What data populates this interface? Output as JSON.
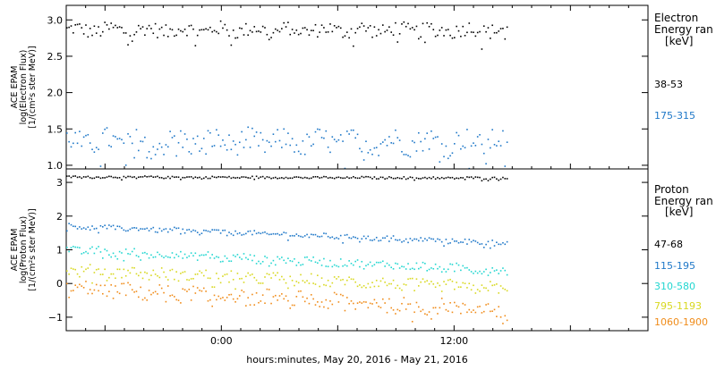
{
  "chart_data": [
    {
      "type": "scatter",
      "panel": "electron",
      "ylabel_lines": [
        "ACE EPAM",
        "log(Electron Flux)",
        "[1/(cm²s ster MeV)]"
      ],
      "ylim": [
        0.95,
        3.2
      ],
      "yticks": [
        1.0,
        1.5,
        2.0,
        2.5,
        3.0
      ],
      "ytick_labels": [
        "1.0",
        "1.5",
        "2.0",
        "2.5",
        "3.0"
      ],
      "legend_title": [
        "Electron",
        "Energy ran",
        "[keV]"
      ],
      "series": [
        {
          "name": "38-53",
          "color": "#000000",
          "center": 2.87,
          "spread": 0.1,
          "drift": 0.0
        },
        {
          "name": "175-315",
          "color": "#1f78c8",
          "center": 1.33,
          "spread": 0.16,
          "drift": 0.0
        }
      ]
    },
    {
      "type": "scatter",
      "panel": "proton",
      "ylabel_lines": [
        "ACE EPAM",
        "log(Proton Flux)",
        "[1/(cm²s ster MeV)]"
      ],
      "ylim": [
        -1.4,
        3.4
      ],
      "yticks": [
        -1,
        0,
        1,
        2,
        3
      ],
      "ytick_labels": [
        "−1",
        "0",
        "1",
        "2",
        "3"
      ],
      "legend_title": [
        "Proton",
        "Energy ran",
        "[keV]"
      ],
      "series": [
        {
          "name": "47-68",
          "color": "#000000",
          "center": 3.18,
          "spread": 0.03,
          "drift": -0.03
        },
        {
          "name": "115-195",
          "color": "#1f78c8",
          "center": 1.72,
          "spread": 0.07,
          "drift": -0.5
        },
        {
          "name": "310-580",
          "color": "#22d6d0",
          "center": 1.02,
          "spread": 0.12,
          "drift": -0.62
        },
        {
          "name": "795-1193",
          "color": "#d8d820",
          "center": 0.42,
          "spread": 0.16,
          "drift": -0.55
        },
        {
          "name": "1060-1900",
          "color": "#f08c1a",
          "center": -0.12,
          "spread": 0.22,
          "drift": -0.65
        }
      ]
    }
  ],
  "x_axis": {
    "ticks": [
      0,
      12
    ],
    "tick_labels": [
      "0:00",
      "12:00"
    ],
    "range_hours": [
      -8,
      22
    ],
    "data_range_hours": [
      -8,
      14.7
    ],
    "label": "hours:minutes, May 20, 2016 - May 21, 2016"
  }
}
